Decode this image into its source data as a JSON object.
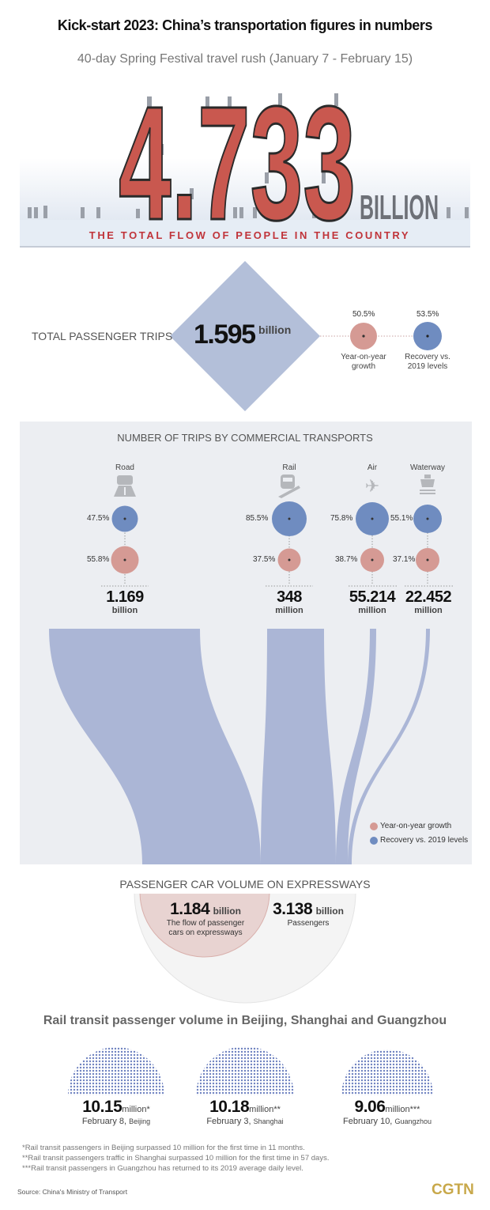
{
  "header": {
    "title": "Kick-start 2023: China’s transportation figures in numbers",
    "subtitle": "40-day Spring Festival travel rush (January 7 - February 15)"
  },
  "hero": {
    "value": "4.733",
    "unit": "BILLION",
    "caption": "THE TOTAL FLOW OF PEOPLE IN THE COUNTRY"
  },
  "total_trips": {
    "label": "TOTAL PASSENGER TRIPS",
    "value": "1.595",
    "unit": "billion",
    "growth": {
      "pct": "50.5%",
      "label_1": "Year-on-year",
      "label_2": "growth"
    },
    "recovery": {
      "pct": "53.5%",
      "label_1": "Recovery vs.",
      "label_2": "2019 levels"
    }
  },
  "commercial": {
    "title": "NUMBER OF TRIPS BY COMMERCIAL TRANSPORTS",
    "modes": [
      {
        "name": "Road",
        "icon": "car-road-icon",
        "recovery": "47.5%",
        "growth": "55.8%",
        "value": "1.169",
        "unit": "billion"
      },
      {
        "name": "Rail",
        "icon": "train-icon",
        "recovery": "85.5%",
        "growth": "37.5%",
        "value": "348",
        "unit": "million"
      },
      {
        "name": "Air",
        "icon": "airplane-icon",
        "recovery": "75.8%",
        "growth": "38.7%",
        "value": "55.214",
        "unit": "million"
      },
      {
        "name": "Waterway",
        "icon": "ship-icon",
        "recovery": "55.1%",
        "growth": "37.1%",
        "value": "22.452",
        "unit": "million"
      }
    ],
    "legend": {
      "growth": "Year-on-year growth",
      "recovery": "Recovery vs. 2019 levels"
    }
  },
  "expressway": {
    "title": "PASSENGER CAR VOLUME ON EXPRESSWAYS",
    "cars": {
      "value": "1.184",
      "unit": "billion",
      "label_1": "The flow of passenger",
      "label_2": "cars on expressways"
    },
    "passengers": {
      "value": "3.138",
      "unit": "billion",
      "label": "Passengers"
    }
  },
  "rail_transit": {
    "title": "Rail transit passenger volume in Beijing, Shanghai and Guangzhou",
    "cities": [
      {
        "value": "10.15",
        "unit": "million*",
        "date": "February 8,",
        "city": "Beijing"
      },
      {
        "value": "10.18",
        "unit": "million**",
        "date": "February 3,",
        "city": "Shanghai"
      },
      {
        "value": "9.06",
        "unit": "million***",
        "date": "February 10,",
        "city": "Guangzhou"
      }
    ],
    "notes": [
      "*Rail transit passengers in Beijing surpassed 10 million for the first time in 11 months.",
      "**Rail transit passengers traffic in Shanghai surpassed 10 million for the first time in 57 days.",
      "***Rail transit passengers in Guangzhou has returned to its 2019 average daily level."
    ]
  },
  "footer": {
    "source": "Source: China's Ministry of Transport",
    "brand": "CGTN"
  },
  "colors": {
    "red": "#c9584f",
    "pink": "#d59a94",
    "blue": "#6f8cc0",
    "lightblue": "#b3bfd9",
    "panel": "#eceef2",
    "gold": "#c8a84a"
  }
}
